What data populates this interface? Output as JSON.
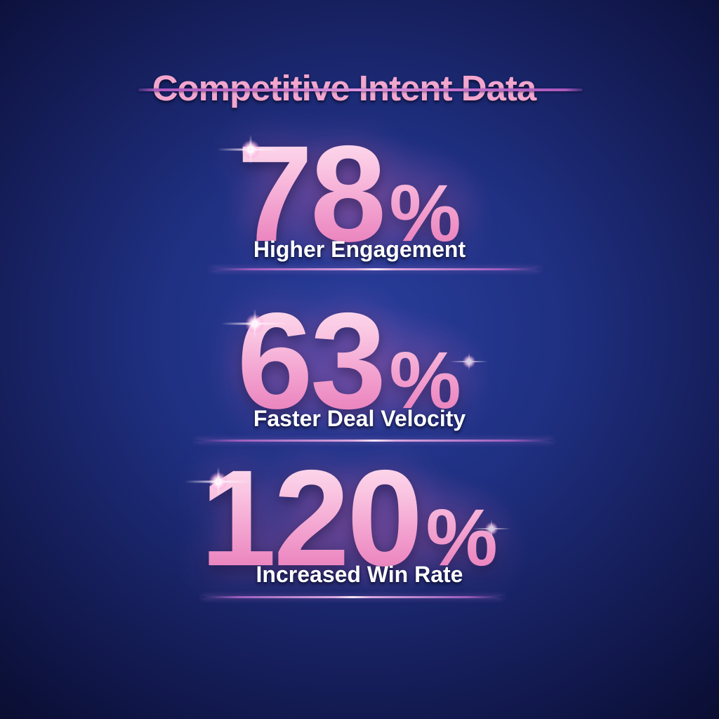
{
  "title": "Competitive Intent Data",
  "stats": [
    {
      "value": "78",
      "unit": "%",
      "label": "Higher Engagement"
    },
    {
      "value": "63",
      "unit": "%",
      "label": "Faster Deal Velocity"
    },
    {
      "value": "120",
      "unit": "%",
      "label": "Increased Win Rate"
    }
  ],
  "chart_data": {
    "type": "table",
    "title": "Competitive Intent Data",
    "categories": [
      "Higher Engagement",
      "Faster Deal Velocity",
      "Increased Win Rate"
    ],
    "values": [
      78,
      63,
      120
    ],
    "unit": "%",
    "layout": "big-number infographic, vertical stack, dark blue radial background"
  },
  "colors": {
    "background_center": "#2a40a0",
    "background_edge": "#0b0f34",
    "title_pink": "#f2a6ce",
    "number_pink_light": "#fde2f1",
    "number_pink_deep": "#e77cb9",
    "divider_purple": "#9c5cbe",
    "label_white": "#ffffff"
  }
}
